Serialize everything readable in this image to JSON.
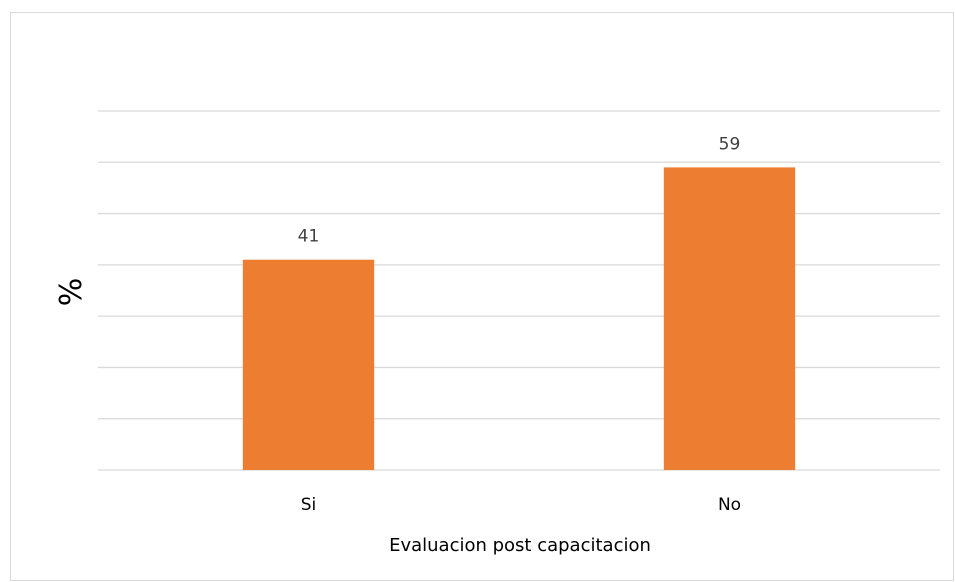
{
  "chart_data": {
    "type": "bar",
    "categories": [
      "Si",
      "No"
    ],
    "values": [
      41,
      59
    ],
    "title": "",
    "xlabel": "Evaluacion post capacitacion",
    "ylabel": "%",
    "ylim": [
      0,
      70
    ],
    "grid": true,
    "legend": "none",
    "bar_color": "#ed7d31"
  }
}
